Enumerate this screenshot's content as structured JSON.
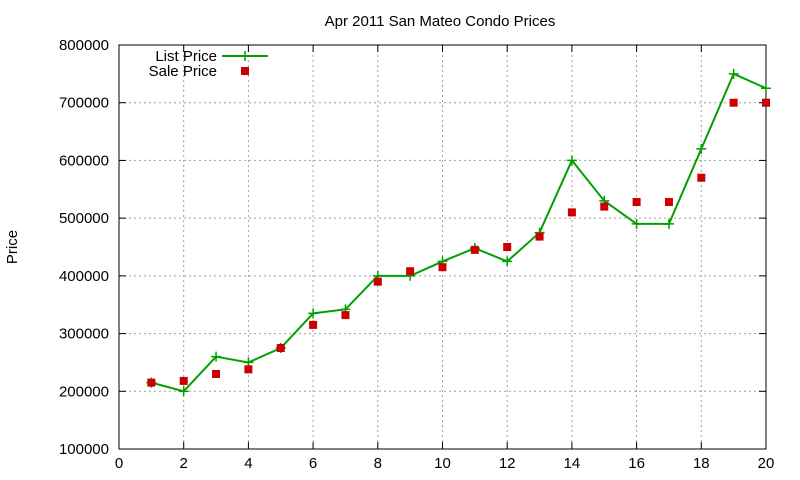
{
  "chart_data": {
    "type": "line",
    "title": "Apr 2011 San Mateo Condo Prices",
    "xlabel": "",
    "ylabel": "Price",
    "xlim": [
      0,
      20
    ],
    "ylim": [
      100000,
      800000
    ],
    "x_ticks": [
      0,
      2,
      4,
      6,
      8,
      10,
      12,
      14,
      16,
      18,
      20
    ],
    "y_ticks": [
      100000,
      200000,
      300000,
      400000,
      500000,
      600000,
      700000,
      800000
    ],
    "grid": true,
    "legend_position": "top-left",
    "series": [
      {
        "name": "List Price",
        "style": "line-with-plus-markers",
        "color": "#00a000",
        "x": [
          1,
          2,
          3,
          4,
          5,
          6,
          7,
          8,
          9,
          10,
          11,
          12,
          13,
          14,
          15,
          16,
          17,
          18,
          19,
          20
        ],
        "y": [
          215000,
          200000,
          260000,
          250000,
          275000,
          335000,
          342000,
          400000,
          400000,
          425000,
          448000,
          425000,
          475000,
          600000,
          530000,
          490000,
          490000,
          620000,
          750000,
          725000
        ]
      },
      {
        "name": "Sale Price",
        "style": "square-markers",
        "color": "#cc0000",
        "x": [
          1,
          2,
          3,
          4,
          5,
          6,
          7,
          8,
          9,
          10,
          11,
          12,
          13,
          14,
          15,
          16,
          17,
          18,
          19,
          20
        ],
        "y": [
          215000,
          218000,
          230000,
          238000,
          275000,
          315000,
          332000,
          390000,
          408000,
          415000,
          445000,
          450000,
          468000,
          510000,
          520000,
          528000,
          528000,
          570000,
          700000,
          700000
        ]
      }
    ]
  }
}
